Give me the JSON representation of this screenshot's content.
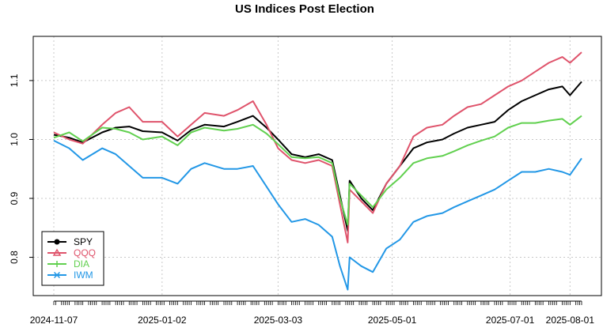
{
  "chart_data": {
    "type": "line",
    "title": "US Indices Post Election",
    "xlabel": "",
    "ylabel": "",
    "x_range": [
      "2024-11-07",
      "2025-08-07"
    ],
    "ylim": [
      0.735,
      1.175
    ],
    "grid": true,
    "legend_position": "bottom-left",
    "x_tick_labels": [
      "2024-11-07",
      "2025-01-02",
      "2025-03-03",
      "2025-05-01",
      "2025-07-01",
      "2025-08-01"
    ],
    "y_tick_labels": [
      "0.8",
      "0.9",
      "1.0",
      "1.1"
    ],
    "y_ticks": [
      0.8,
      0.9,
      1.0,
      1.1
    ],
    "x": [
      "2024-11-07",
      "2024-11-15",
      "2024-11-22",
      "2024-12-02",
      "2024-12-09",
      "2024-12-16",
      "2024-12-23",
      "2025-01-02",
      "2025-01-10",
      "2025-01-17",
      "2025-01-24",
      "2025-02-03",
      "2025-02-10",
      "2025-02-18",
      "2025-02-25",
      "2025-03-03",
      "2025-03-10",
      "2025-03-17",
      "2025-03-24",
      "2025-03-31",
      "2025-04-04",
      "2025-04-08",
      "2025-04-09",
      "2025-04-15",
      "2025-04-21",
      "2025-04-28",
      "2025-05-05",
      "2025-05-12",
      "2025-05-19",
      "2025-05-27",
      "2025-06-02",
      "2025-06-09",
      "2025-06-16",
      "2025-06-23",
      "2025-06-30",
      "2025-07-07",
      "2025-07-14",
      "2025-07-21",
      "2025-07-28",
      "2025-08-01",
      "2025-08-07"
    ],
    "series": [
      {
        "name": "SPY",
        "color": "#000000",
        "marker": "circle",
        "values": [
          1.008,
          1.003,
          0.995,
          1.012,
          1.02,
          1.022,
          1.014,
          1.012,
          0.998,
          1.016,
          1.025,
          1.022,
          1.03,
          1.04,
          1.02,
          1.0,
          0.975,
          0.97,
          0.975,
          0.965,
          0.905,
          0.845,
          0.93,
          0.9,
          0.88,
          0.925,
          0.955,
          0.985,
          0.995,
          1.0,
          1.01,
          1.02,
          1.025,
          1.03,
          1.05,
          1.065,
          1.075,
          1.085,
          1.09,
          1.075,
          1.098
        ]
      },
      {
        "name": "QQQ",
        "color": "#DF536B",
        "marker": "triangle",
        "values": [
          1.012,
          1.0,
          0.993,
          1.025,
          1.045,
          1.055,
          1.03,
          1.03,
          1.005,
          1.025,
          1.045,
          1.04,
          1.05,
          1.065,
          1.025,
          0.985,
          0.965,
          0.96,
          0.965,
          0.955,
          0.89,
          0.825,
          0.915,
          0.895,
          0.875,
          0.925,
          0.955,
          1.005,
          1.02,
          1.025,
          1.04,
          1.055,
          1.06,
          1.075,
          1.09,
          1.1,
          1.115,
          1.13,
          1.14,
          1.13,
          1.148
        ]
      },
      {
        "name": "DIA",
        "color": "#61D04F",
        "marker": "plus",
        "values": [
          1.003,
          1.012,
          0.997,
          1.02,
          1.018,
          1.012,
          1.0,
          1.005,
          0.99,
          1.012,
          1.02,
          1.015,
          1.018,
          1.025,
          1.01,
          0.992,
          0.97,
          0.968,
          0.97,
          0.96,
          0.9,
          0.855,
          0.925,
          0.905,
          0.885,
          0.915,
          0.935,
          0.96,
          0.968,
          0.972,
          0.98,
          0.99,
          0.998,
          1.005,
          1.02,
          1.028,
          1.028,
          1.032,
          1.035,
          1.025,
          1.04
        ]
      },
      {
        "name": "IWM",
        "color": "#2297E6",
        "marker": "cross",
        "values": [
          0.998,
          0.985,
          0.965,
          0.985,
          0.975,
          0.955,
          0.935,
          0.935,
          0.925,
          0.95,
          0.96,
          0.95,
          0.95,
          0.955,
          0.92,
          0.89,
          0.86,
          0.865,
          0.855,
          0.835,
          0.785,
          0.745,
          0.8,
          0.785,
          0.775,
          0.815,
          0.83,
          0.86,
          0.87,
          0.875,
          0.885,
          0.895,
          0.905,
          0.915,
          0.93,
          0.945,
          0.945,
          0.95,
          0.945,
          0.94,
          0.968
        ]
      }
    ]
  }
}
